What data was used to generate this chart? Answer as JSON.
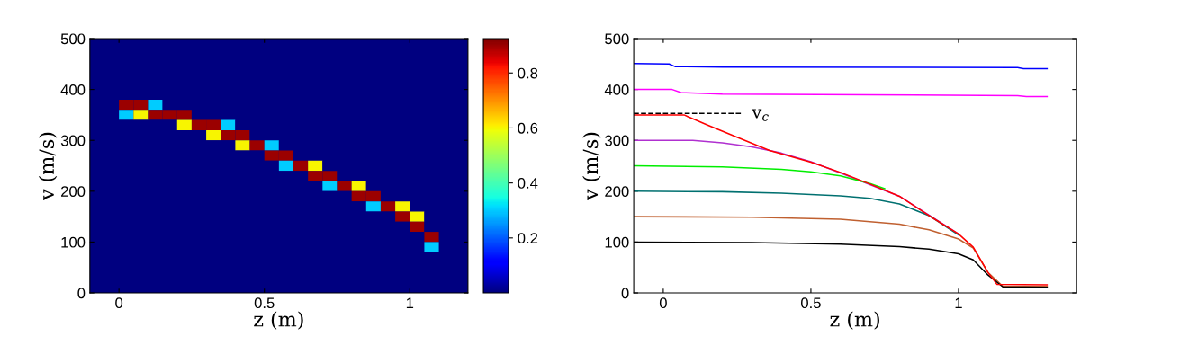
{
  "chart_data": [
    {
      "type": "heatmap",
      "xlabel": "z (m)",
      "ylabel": "v (m/s)",
      "x": [
        0.025,
        0.075,
        0.125,
        0.175,
        0.225,
        0.275,
        0.325,
        0.375,
        0.425,
        0.475,
        0.525,
        0.575,
        0.625,
        0.675,
        0.725,
        0.775,
        0.825,
        0.875,
        0.925,
        0.975,
        1.025,
        1.075
      ],
      "y": [
        490,
        470,
        450,
        430,
        410,
        390,
        370,
        350,
        330,
        310,
        290,
        270,
        250,
        230,
        210,
        190,
        170,
        150,
        130,
        110,
        90,
        70,
        50,
        30,
        10
      ],
      "cells": [
        [
          0,
          0,
          0,
          0,
          0,
          0,
          0,
          0,
          0,
          0,
          0,
          0,
          0,
          0,
          0,
          0,
          0,
          0,
          0,
          0,
          0,
          0
        ],
        [
          0,
          0,
          0,
          0,
          0,
          0,
          0,
          0,
          0,
          0,
          0,
          0,
          0,
          0,
          0,
          0,
          0,
          0,
          0,
          0,
          0,
          0
        ],
        [
          0,
          0,
          0,
          0,
          0,
          0,
          0,
          0,
          0,
          0,
          0,
          0,
          0,
          0,
          0,
          0,
          0,
          0,
          0,
          0,
          0,
          0
        ],
        [
          0,
          0,
          0,
          0,
          0,
          0,
          0,
          0,
          0,
          0,
          0,
          0,
          0,
          0,
          0,
          0,
          0,
          0,
          0,
          0,
          0,
          0
        ],
        [
          0,
          0,
          0,
          0,
          0,
          0,
          0,
          0,
          0,
          0,
          0,
          0,
          0,
          0,
          0,
          0,
          0,
          0,
          0,
          0,
          0,
          0
        ],
        [
          0,
          0,
          0,
          0,
          0,
          0,
          0,
          0,
          0,
          0,
          0,
          0,
          0,
          0,
          0,
          0,
          0,
          0,
          0,
          0,
          0,
          0
        ],
        [
          0.9,
          0.9,
          0.3,
          0,
          0,
          0,
          0,
          0,
          0,
          0,
          0,
          0,
          0,
          0,
          0,
          0,
          0,
          0,
          0,
          0,
          0,
          0
        ],
        [
          0.3,
          0.6,
          0.9,
          0.9,
          0.9,
          0,
          0,
          0,
          0,
          0,
          0,
          0,
          0,
          0,
          0,
          0,
          0,
          0,
          0,
          0,
          0,
          0
        ],
        [
          0,
          0,
          0,
          0,
          0.6,
          0.9,
          0.9,
          0.3,
          0,
          0,
          0,
          0,
          0,
          0,
          0,
          0,
          0,
          0,
          0,
          0,
          0,
          0
        ],
        [
          0,
          0,
          0,
          0,
          0,
          0,
          0.6,
          0.9,
          0.9,
          0,
          0,
          0,
          0,
          0,
          0,
          0,
          0,
          0,
          0,
          0,
          0,
          0
        ],
        [
          0,
          0,
          0,
          0,
          0,
          0,
          0,
          0,
          0.6,
          0.9,
          0.3,
          0,
          0,
          0,
          0,
          0,
          0,
          0,
          0,
          0,
          0,
          0
        ],
        [
          0,
          0,
          0,
          0,
          0,
          0,
          0,
          0,
          0,
          0,
          0.9,
          0.9,
          0,
          0,
          0,
          0,
          0,
          0,
          0,
          0,
          0,
          0
        ],
        [
          0,
          0,
          0,
          0,
          0,
          0,
          0,
          0,
          0,
          0,
          0,
          0.3,
          0.9,
          0.6,
          0,
          0,
          0,
          0,
          0,
          0,
          0,
          0
        ],
        [
          0,
          0,
          0,
          0,
          0,
          0,
          0,
          0,
          0,
          0,
          0,
          0,
          0,
          0.9,
          0.9,
          0,
          0,
          0,
          0,
          0,
          0,
          0
        ],
        [
          0,
          0,
          0,
          0,
          0,
          0,
          0,
          0,
          0,
          0,
          0,
          0,
          0,
          0,
          0.3,
          0.9,
          0.6,
          0,
          0,
          0,
          0,
          0
        ],
        [
          0,
          0,
          0,
          0,
          0,
          0,
          0,
          0,
          0,
          0,
          0,
          0,
          0,
          0,
          0,
          0,
          0.9,
          0.9,
          0,
          0,
          0,
          0
        ],
        [
          0,
          0,
          0,
          0,
          0,
          0,
          0,
          0,
          0,
          0,
          0,
          0,
          0,
          0,
          0,
          0,
          0,
          0.3,
          0.9,
          0.6,
          0,
          0
        ],
        [
          0,
          0,
          0,
          0,
          0,
          0,
          0,
          0,
          0,
          0,
          0,
          0,
          0,
          0,
          0,
          0,
          0,
          0,
          0,
          0.9,
          0.6,
          0
        ],
        [
          0,
          0,
          0,
          0,
          0,
          0,
          0,
          0,
          0,
          0,
          0,
          0,
          0,
          0,
          0,
          0,
          0,
          0,
          0,
          0,
          0.9,
          0
        ],
        [
          0,
          0,
          0,
          0,
          0,
          0,
          0,
          0,
          0,
          0,
          0,
          0,
          0,
          0,
          0,
          0,
          0,
          0,
          0,
          0,
          0,
          0.9
        ],
        [
          0,
          0,
          0,
          0,
          0,
          0,
          0,
          0,
          0,
          0,
          0,
          0,
          0,
          0,
          0,
          0,
          0,
          0,
          0,
          0,
          0,
          0.3
        ],
        [
          0,
          0,
          0,
          0,
          0,
          0,
          0,
          0,
          0,
          0,
          0,
          0,
          0,
          0,
          0,
          0,
          0,
          0,
          0,
          0,
          0,
          0
        ],
        [
          0,
          0,
          0,
          0,
          0,
          0,
          0,
          0,
          0,
          0,
          0,
          0,
          0,
          0,
          0,
          0,
          0,
          0,
          0,
          0,
          0,
          0
        ],
        [
          0,
          0,
          0,
          0,
          0,
          0,
          0,
          0,
          0,
          0,
          0,
          0,
          0,
          0,
          0,
          0,
          0,
          0,
          0,
          0,
          0,
          0
        ],
        [
          0,
          0,
          0,
          0,
          0,
          0,
          0,
          0,
          0,
          0,
          0,
          0,
          0,
          0,
          0,
          0,
          0,
          0,
          0,
          0,
          0,
          0
        ]
      ],
      "xlim": [
        -0.1,
        1.2
      ],
      "xticks": [
        0,
        0.5,
        1
      ],
      "ylim": [
        0,
        500
      ],
      "yticks": [
        0,
        100,
        200,
        300,
        400,
        500
      ],
      "clim": [
        0,
        0.925
      ],
      "cticks": [
        0.2,
        0.4,
        0.6,
        0.8
      ],
      "grid": false,
      "legend": false
    },
    {
      "type": "line",
      "xlabel": "z (m)",
      "ylabel": "v (m/s)",
      "xlim": [
        -0.1,
        1.4
      ],
      "xticks": [
        0,
        0.5,
        1
      ],
      "ylim": [
        0,
        500
      ],
      "yticks": [
        0,
        100,
        200,
        300,
        400,
        500
      ],
      "grid": false,
      "legend": false,
      "marker": "none",
      "line_style": "solid",
      "series": [
        {
          "color": "#0000ff",
          "x": [
            -0.1,
            0.02,
            0.04,
            0.2,
            1.2,
            1.22,
            1.3
          ],
          "values": [
            451,
            450,
            445,
            444,
            443,
            441,
            441
          ]
        },
        {
          "color": "#ff00ff",
          "x": [
            -0.1,
            0.03,
            0.06,
            0.2,
            1.2,
            1.23,
            1.3
          ],
          "values": [
            400,
            400,
            394,
            391,
            388,
            386,
            386
          ]
        },
        {
          "color": "#b030d0",
          "x": [
            -0.1,
            0.1,
            0.2,
            0.3,
            0.4,
            0.5,
            0.6,
            0.7,
            0.8,
            0.9,
            1.0
          ],
          "values": [
            300,
            300,
            295,
            287,
            275,
            258,
            236,
            213,
            190,
            153,
            116
          ]
        },
        {
          "color": "#00ee00",
          "x": [
            -0.1,
            0.2,
            0.4,
            0.5,
            0.6,
            0.7,
            0.75
          ],
          "values": [
            250,
            248,
            243,
            238,
            230,
            215,
            205
          ]
        },
        {
          "color": "#007070",
          "x": [
            -0.1,
            0.2,
            0.4,
            0.6,
            0.7,
            0.8,
            0.9,
            1.0
          ],
          "values": [
            200,
            199,
            196,
            191,
            186,
            175,
            152,
            114
          ]
        },
        {
          "color": "#c06030",
          "x": [
            -0.1,
            0.3,
            0.6,
            0.8,
            0.9,
            1.0,
            1.05,
            1.1,
            1.15,
            1.3
          ],
          "values": [
            150,
            149,
            145,
            135,
            124,
            106,
            88,
            40,
            13,
            13
          ]
        },
        {
          "color": "#000000",
          "x": [
            -0.1,
            0.3,
            0.6,
            0.8,
            0.9,
            1.0,
            1.05,
            1.1,
            1.15,
            1.3
          ],
          "values": [
            100,
            99,
            96,
            91,
            86,
            77,
            65,
            35,
            12,
            11
          ]
        },
        {
          "color": "#ff0000",
          "x": [
            -0.1,
            0.07,
            0.15,
            0.25,
            0.36,
            0.5,
            0.6,
            0.7,
            0.8,
            0.9,
            1.0,
            1.05,
            1.1,
            1.13,
            1.3
          ],
          "values": [
            350,
            350,
            330,
            306,
            280,
            257,
            237,
            214,
            190,
            152,
            116,
            90,
            40,
            17,
            16
          ]
        },
        {
          "name": "v$_{c}$",
          "color": "#000000",
          "line_style": "dashed",
          "x": [
            -0.1,
            0.27
          ],
          "values": [
            353,
            353
          ]
        }
      ]
    }
  ]
}
